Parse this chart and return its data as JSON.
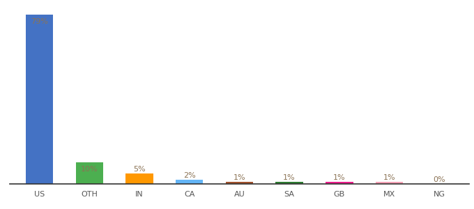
{
  "categories": [
    "US",
    "OTH",
    "IN",
    "CA",
    "AU",
    "SA",
    "GB",
    "MX",
    "NG"
  ],
  "values": [
    79,
    10,
    5,
    2,
    1,
    1,
    1,
    1,
    0
  ],
  "labels": [
    "79%",
    "10%",
    "5%",
    "2%",
    "1%",
    "1%",
    "1%",
    "1%",
    "0%"
  ],
  "colors": [
    "#4472C4",
    "#4CAF50",
    "#FF9800",
    "#64B5F6",
    "#A0522D",
    "#2E7D32",
    "#E91E8C",
    "#F4A0B5",
    "#FFFFFF"
  ],
  "background_color": "#FFFFFF",
  "ylim": [
    0,
    83
  ],
  "label_inside_threshold": 10,
  "label_color_inside": "#8B7355",
  "label_color_outside": "#8B7355",
  "label_fontsize": 8,
  "tick_fontsize": 8,
  "bar_width": 0.55
}
